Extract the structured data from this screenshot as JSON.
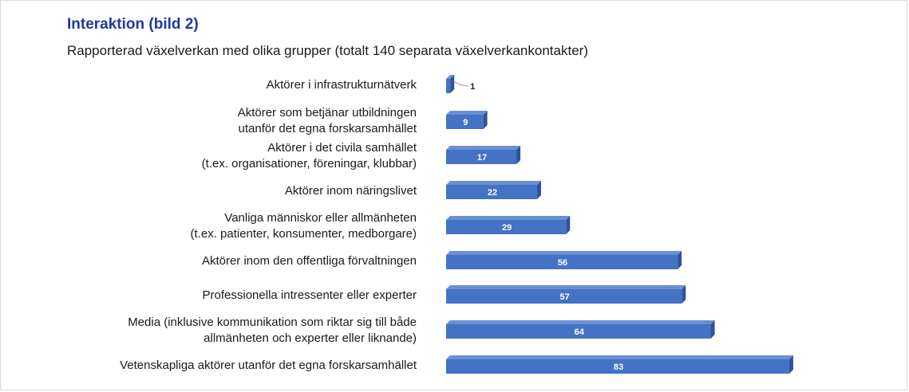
{
  "title": "Interaktion (bild 2)",
  "subtitle": "Rapporterad växelverkan med olika grupper (totalt 140 separata växelverkankontakter)",
  "colors": {
    "bar_front": "#4472c4",
    "bar_top": "#6a8fd6",
    "bar_side": "#2f529a",
    "title": "#1f3a9e"
  },
  "chart_data": {
    "type": "bar",
    "orientation": "horizontal",
    "title": "Interaktion (bild 2)",
    "subtitle": "Rapporterad växelverkan med olika grupper (totalt 140 separata växelverkankontakter)",
    "xlabel": "",
    "ylabel": "",
    "grid": false,
    "legend": "none",
    "categories": [
      [
        "Aktörer i infrastrukturnätverk"
      ],
      [
        "Aktörer som betjänar utbildningen",
        "utanför det egna forskarsamhället"
      ],
      [
        "Aktörer i det civila samhället",
        "(t.ex. organisationer, föreningar, klubbar)"
      ],
      [
        "Aktörer inom näringslivet"
      ],
      [
        "Vanliga människor eller allmänheten",
        "(t.ex. patienter, konsumenter, medborgare)"
      ],
      [
        "Aktörer inom den offentliga förvaltningen"
      ],
      [
        "Professionella intressenter eller experter"
      ],
      [
        "Media (inklusive kommunikation som riktar sig till både",
        "allmänheten och experter eller liknande)"
      ],
      [
        "Vetenskapliga aktörer utanför det egna forskarsamhället"
      ]
    ],
    "values": [
      1,
      9,
      17,
      22,
      29,
      56,
      57,
      64,
      83
    ]
  }
}
